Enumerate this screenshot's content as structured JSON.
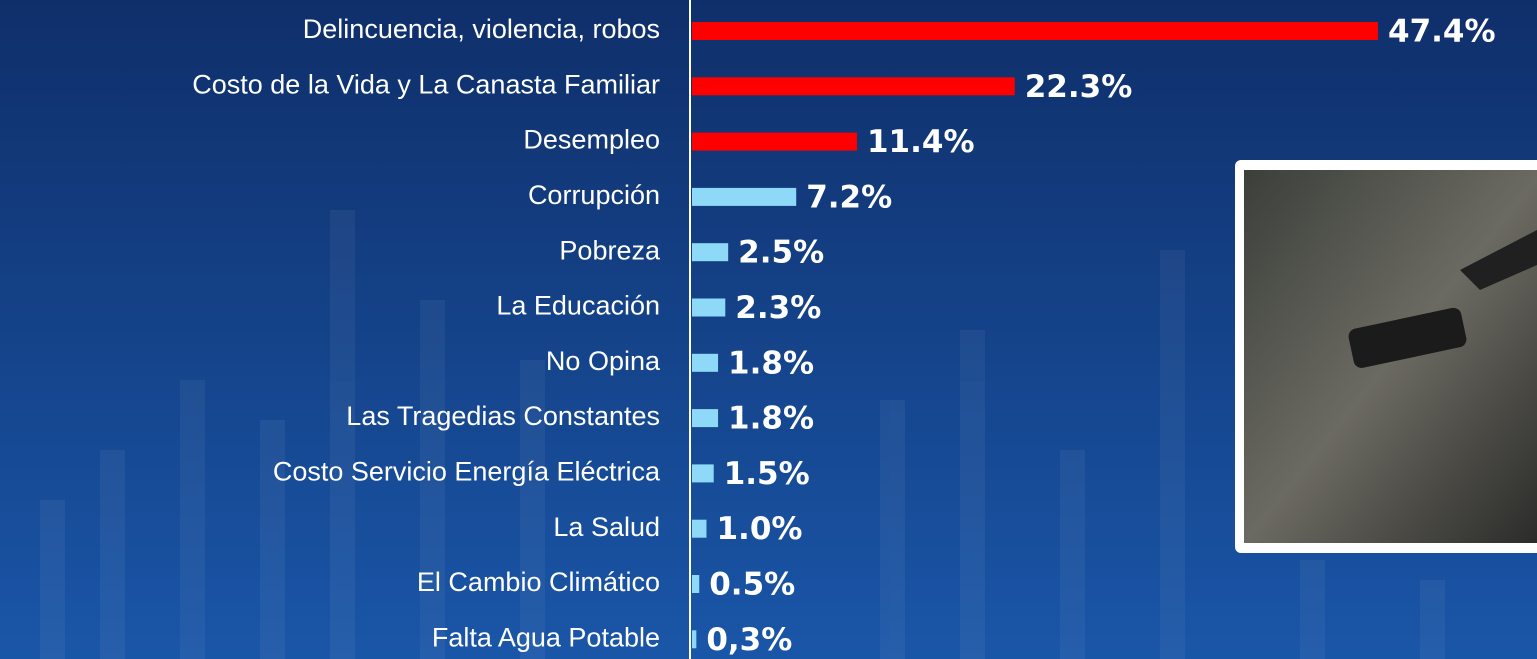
{
  "chart_data": {
    "type": "bar",
    "categories": [
      "Delincuencia, violencia, robos",
      "Costo de la Vida y La Canasta Familiar",
      "Desempleo",
      "Corrupción",
      "Pobreza",
      "La Educación",
      "No Opina",
      "Las Tragedias Constantes",
      "Costo Servicio Energía Eléctrica",
      "La Salud",
      "El Cambio Climático",
      "Falta Agua Potable"
    ],
    "values": [
      47.4,
      22.3,
      11.4,
      7.2,
      2.5,
      2.3,
      1.8,
      1.8,
      1.5,
      1.0,
      0.5,
      0.3
    ],
    "value_labels": [
      "47.4%",
      "22.3%",
      "11.4%",
      "7.2%",
      "2.5%",
      "2.3%",
      "1.8%",
      "1.8%",
      "1.5%",
      "1.0%",
      "0.5%",
      "0,3%"
    ],
    "colors": [
      "#ff0000",
      "#ff0000",
      "#ff0000",
      "#8fd9f8",
      "#8fd9f8",
      "#8fd9f8",
      "#8fd9f8",
      "#8fd9f8",
      "#8fd9f8",
      "#8fd9f8",
      "#8fd9f8",
      "#8fd9f8"
    ]
  }
}
